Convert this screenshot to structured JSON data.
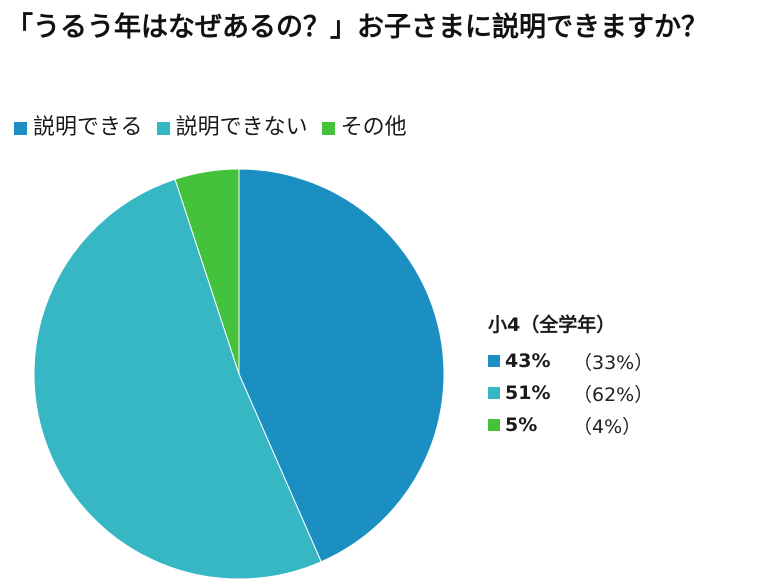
{
  "title": "「うるう年はなぜあるの？」お子さまに説明できますか？",
  "colors": {
    "can": "#1b8fc2",
    "cannot": "#37b6c4",
    "other": "#44c23c"
  },
  "chart_data": {
    "type": "pie",
    "title": "「うるう年はなぜあるの？」お子さまに説明できますか？",
    "legend_position": "top",
    "slices": [
      {
        "label": "説明できる",
        "value": 43
      },
      {
        "label": "説明できない",
        "value": 51
      },
      {
        "label": "その他",
        "value": 5
      }
    ]
  },
  "side_panel": {
    "title": "小4（全学年）",
    "rows": [
      {
        "pct": "43%",
        "sub": "（33%）"
      },
      {
        "pct": "51%",
        "sub": "（62%）"
      },
      {
        "pct": "5%",
        "sub": "（4%）"
      }
    ]
  }
}
